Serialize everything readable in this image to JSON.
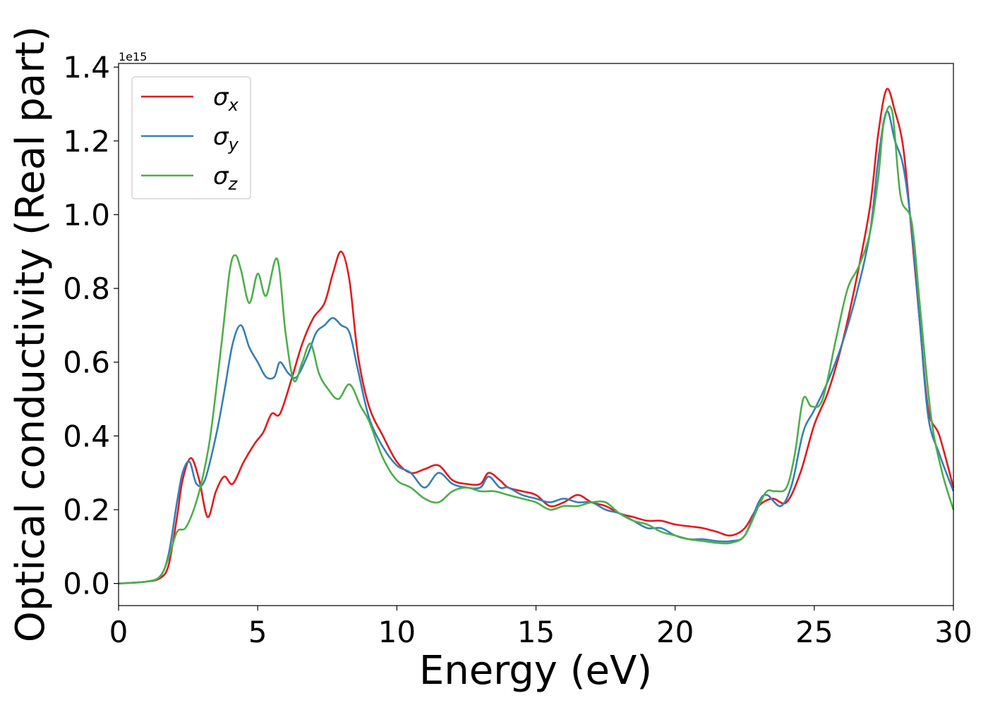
{
  "chart_data": {
    "type": "line",
    "xlabel": "Energy (eV)",
    "ylabel": "Optical conductivity (Real part)",
    "y_offset_label": "1e15",
    "xlim": [
      0,
      30
    ],
    "ylim": [
      -0.06,
      1.41
    ],
    "xticks": [
      "0",
      "5",
      "10",
      "15",
      "20",
      "25",
      "30"
    ],
    "yticks": [
      "0.0",
      "0.2",
      "0.4",
      "0.6",
      "0.8",
      "1.0",
      "1.2",
      "1.4"
    ],
    "grid": false,
    "legend_position": "top-left",
    "series": [
      {
        "name": "σx",
        "symbol": "σ",
        "subscript": "x",
        "color": "#e41a1c",
        "x": [
          0,
          1,
          1.5,
          1.8,
          2.1,
          2.3,
          2.6,
          2.9,
          3.2,
          3.5,
          3.8,
          4.1,
          4.5,
          4.9,
          5.2,
          5.5,
          5.8,
          6.2,
          6.6,
          7,
          7.4,
          7.7,
          8,
          8.3,
          8.6,
          9,
          9.5,
          10,
          10.5,
          11,
          11.5,
          12,
          12.5,
          13,
          13.3,
          13.7,
          14,
          14.5,
          15,
          15.5,
          16,
          16.5,
          17,
          17.5,
          18,
          18.5,
          19,
          19.5,
          20,
          20.5,
          21,
          21.5,
          22,
          22.5,
          23,
          23.5,
          24,
          24.5,
          25,
          25.5,
          26,
          26.5,
          27,
          27.3,
          27.6,
          27.9,
          28.2,
          28.5,
          28.8,
          29.1,
          29.5,
          30
        ],
        "y": [
          0,
          0.005,
          0.015,
          0.05,
          0.18,
          0.28,
          0.34,
          0.28,
          0.18,
          0.25,
          0.29,
          0.27,
          0.33,
          0.38,
          0.41,
          0.46,
          0.46,
          0.55,
          0.65,
          0.72,
          0.76,
          0.84,
          0.9,
          0.82,
          0.62,
          0.48,
          0.4,
          0.33,
          0.3,
          0.31,
          0.32,
          0.28,
          0.27,
          0.27,
          0.3,
          0.28,
          0.26,
          0.25,
          0.24,
          0.21,
          0.22,
          0.24,
          0.22,
          0.21,
          0.19,
          0.18,
          0.17,
          0.17,
          0.16,
          0.155,
          0.15,
          0.14,
          0.13,
          0.15,
          0.21,
          0.23,
          0.22,
          0.3,
          0.43,
          0.52,
          0.65,
          0.82,
          1.02,
          1.22,
          1.34,
          1.28,
          1.18,
          0.95,
          0.7,
          0.47,
          0.4,
          0.26
        ]
      },
      {
        "name": "σy",
        "symbol": "σ",
        "subscript": "y",
        "color": "#377eb8",
        "x": [
          0,
          1,
          1.5,
          1.8,
          2.1,
          2.3,
          2.55,
          2.8,
          3.1,
          3.5,
          3.8,
          4.1,
          4.4,
          4.7,
          5,
          5.3,
          5.6,
          5.8,
          6.1,
          6.4,
          6.8,
          7.1,
          7.4,
          7.7,
          8,
          8.3,
          8.6,
          9,
          9.5,
          10,
          10.5,
          11,
          11.5,
          12,
          12.5,
          13,
          13.3,
          13.7,
          14,
          14.5,
          15,
          15.5,
          16,
          16.5,
          17,
          17.5,
          18,
          18.5,
          19,
          19.5,
          20,
          20.5,
          21,
          21.5,
          22,
          22.5,
          23,
          23.3,
          23.8,
          24.2,
          24.6,
          25,
          25.5,
          26,
          26.5,
          27,
          27.3,
          27.6,
          27.9,
          28.2,
          28.5,
          28.8,
          29.1,
          29.5,
          30
        ],
        "y": [
          0,
          0.005,
          0.02,
          0.08,
          0.22,
          0.3,
          0.33,
          0.27,
          0.28,
          0.4,
          0.52,
          0.65,
          0.7,
          0.64,
          0.6,
          0.56,
          0.56,
          0.6,
          0.57,
          0.56,
          0.62,
          0.68,
          0.7,
          0.72,
          0.7,
          0.68,
          0.58,
          0.45,
          0.37,
          0.32,
          0.3,
          0.26,
          0.3,
          0.27,
          0.26,
          0.26,
          0.29,
          0.26,
          0.26,
          0.24,
          0.23,
          0.22,
          0.23,
          0.22,
          0.22,
          0.2,
          0.19,
          0.17,
          0.15,
          0.15,
          0.13,
          0.12,
          0.12,
          0.115,
          0.115,
          0.13,
          0.22,
          0.24,
          0.21,
          0.27,
          0.41,
          0.47,
          0.55,
          0.65,
          0.78,
          0.95,
          1.15,
          1.28,
          1.2,
          1.13,
          0.96,
          0.7,
          0.45,
          0.35,
          0.25
        ]
      },
      {
        "name": "σz",
        "symbol": "σ",
        "subscript": "z",
        "color": "#4daf4a",
        "x": [
          0,
          1,
          1.5,
          1.8,
          2.1,
          2.4,
          2.7,
          3,
          3.3,
          3.7,
          4,
          4.2,
          4.4,
          4.7,
          5,
          5.3,
          5.7,
          6,
          6.3,
          6.6,
          6.9,
          7.2,
          7.5,
          7.9,
          8.3,
          8.7,
          9,
          9.5,
          10,
          10.5,
          11,
          11.5,
          12,
          12.5,
          13,
          13.5,
          14,
          14.5,
          15,
          15.5,
          16,
          16.5,
          17,
          17.5,
          18,
          18.5,
          19,
          19.5,
          20,
          20.5,
          21,
          21.5,
          22,
          22.5,
          23,
          23.3,
          23.6,
          24,
          24.3,
          24.6,
          24.9,
          25.3,
          25.8,
          26.2,
          26.6,
          27,
          27.3,
          27.5,
          27.8,
          28.1,
          28.5,
          28.8,
          29.2,
          29.6,
          30
        ],
        "y": [
          0,
          0.005,
          0.02,
          0.07,
          0.14,
          0.15,
          0.2,
          0.28,
          0.4,
          0.65,
          0.85,
          0.89,
          0.85,
          0.76,
          0.84,
          0.78,
          0.88,
          0.68,
          0.55,
          0.6,
          0.65,
          0.57,
          0.53,
          0.5,
          0.54,
          0.48,
          0.44,
          0.34,
          0.28,
          0.26,
          0.23,
          0.22,
          0.25,
          0.26,
          0.25,
          0.25,
          0.24,
          0.23,
          0.22,
          0.2,
          0.21,
          0.21,
          0.22,
          0.22,
          0.19,
          0.17,
          0.16,
          0.14,
          0.13,
          0.12,
          0.115,
          0.11,
          0.11,
          0.13,
          0.21,
          0.25,
          0.25,
          0.26,
          0.35,
          0.5,
          0.48,
          0.5,
          0.67,
          0.8,
          0.86,
          0.95,
          1.1,
          1.25,
          1.28,
          1.05,
          0.98,
          0.75,
          0.45,
          0.3,
          0.2
        ]
      }
    ]
  }
}
